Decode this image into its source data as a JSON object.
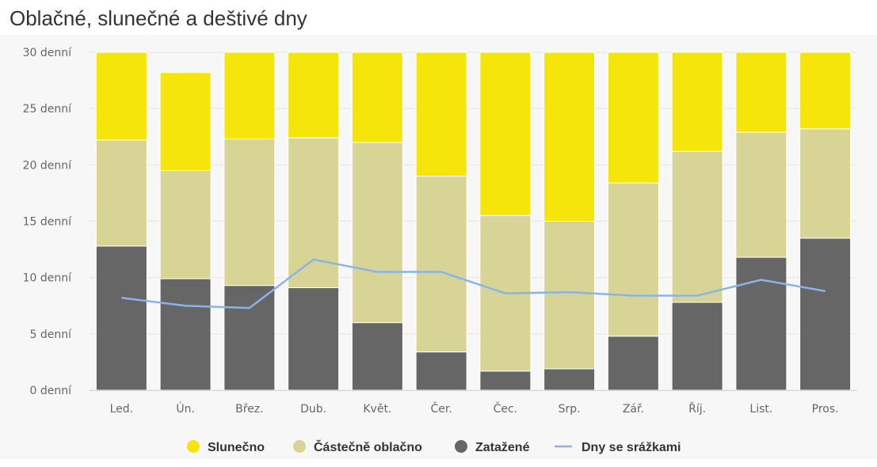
{
  "chart_data": {
    "type": "bar",
    "stacked": true,
    "title": "Oblačné, slunečné a deštivé dny",
    "categories": [
      "Led.",
      "Ún.",
      "Břez.",
      "Dub.",
      "Květ.",
      "Čer.",
      "Čec.",
      "Srp.",
      "Zář.",
      "Říj.",
      "List.",
      "Pros."
    ],
    "y_unit": "denní",
    "ylim": [
      0,
      30
    ],
    "yticks": [
      0,
      5,
      10,
      15,
      20,
      25,
      30
    ],
    "grid": true,
    "legend_position": "bottom",
    "series": [
      {
        "name": "Zatažené",
        "kind": "bar",
        "color": "#666666",
        "values": [
          12.8,
          9.9,
          9.3,
          9.1,
          6.0,
          3.4,
          1.7,
          1.9,
          4.8,
          7.8,
          11.8,
          13.5
        ]
      },
      {
        "name": "Částečně oblačno",
        "kind": "bar",
        "color": "#d8d495",
        "values": [
          9.4,
          9.6,
          13.0,
          13.3,
          16.0,
          15.6,
          13.8,
          13.1,
          13.6,
          13.4,
          11.1,
          9.7
        ]
      },
      {
        "name": "Slunečno",
        "kind": "bar",
        "color": "#f5e50a",
        "values": [
          7.8,
          8.7,
          7.7,
          7.6,
          8.0,
          11.0,
          14.5,
          15.0,
          11.6,
          8.8,
          7.1,
          6.8
        ]
      },
      {
        "name": "Dny se srážkami",
        "kind": "line",
        "color": "#8ab4e8",
        "values": [
          8.2,
          7.5,
          7.3,
          11.6,
          10.5,
          10.5,
          8.6,
          8.7,
          8.4,
          8.4,
          9.8,
          8.8
        ]
      }
    ],
    "legend": [
      {
        "name": "Slunečno",
        "color": "#f5e50a",
        "marker": "circle"
      },
      {
        "name": "Částečně oblačno",
        "color": "#d8d495",
        "marker": "circle"
      },
      {
        "name": "Zatažené",
        "color": "#666666",
        "marker": "circle"
      },
      {
        "name": "Dny se srážkami",
        "color": "#8ab4e8",
        "marker": "line"
      }
    ]
  }
}
